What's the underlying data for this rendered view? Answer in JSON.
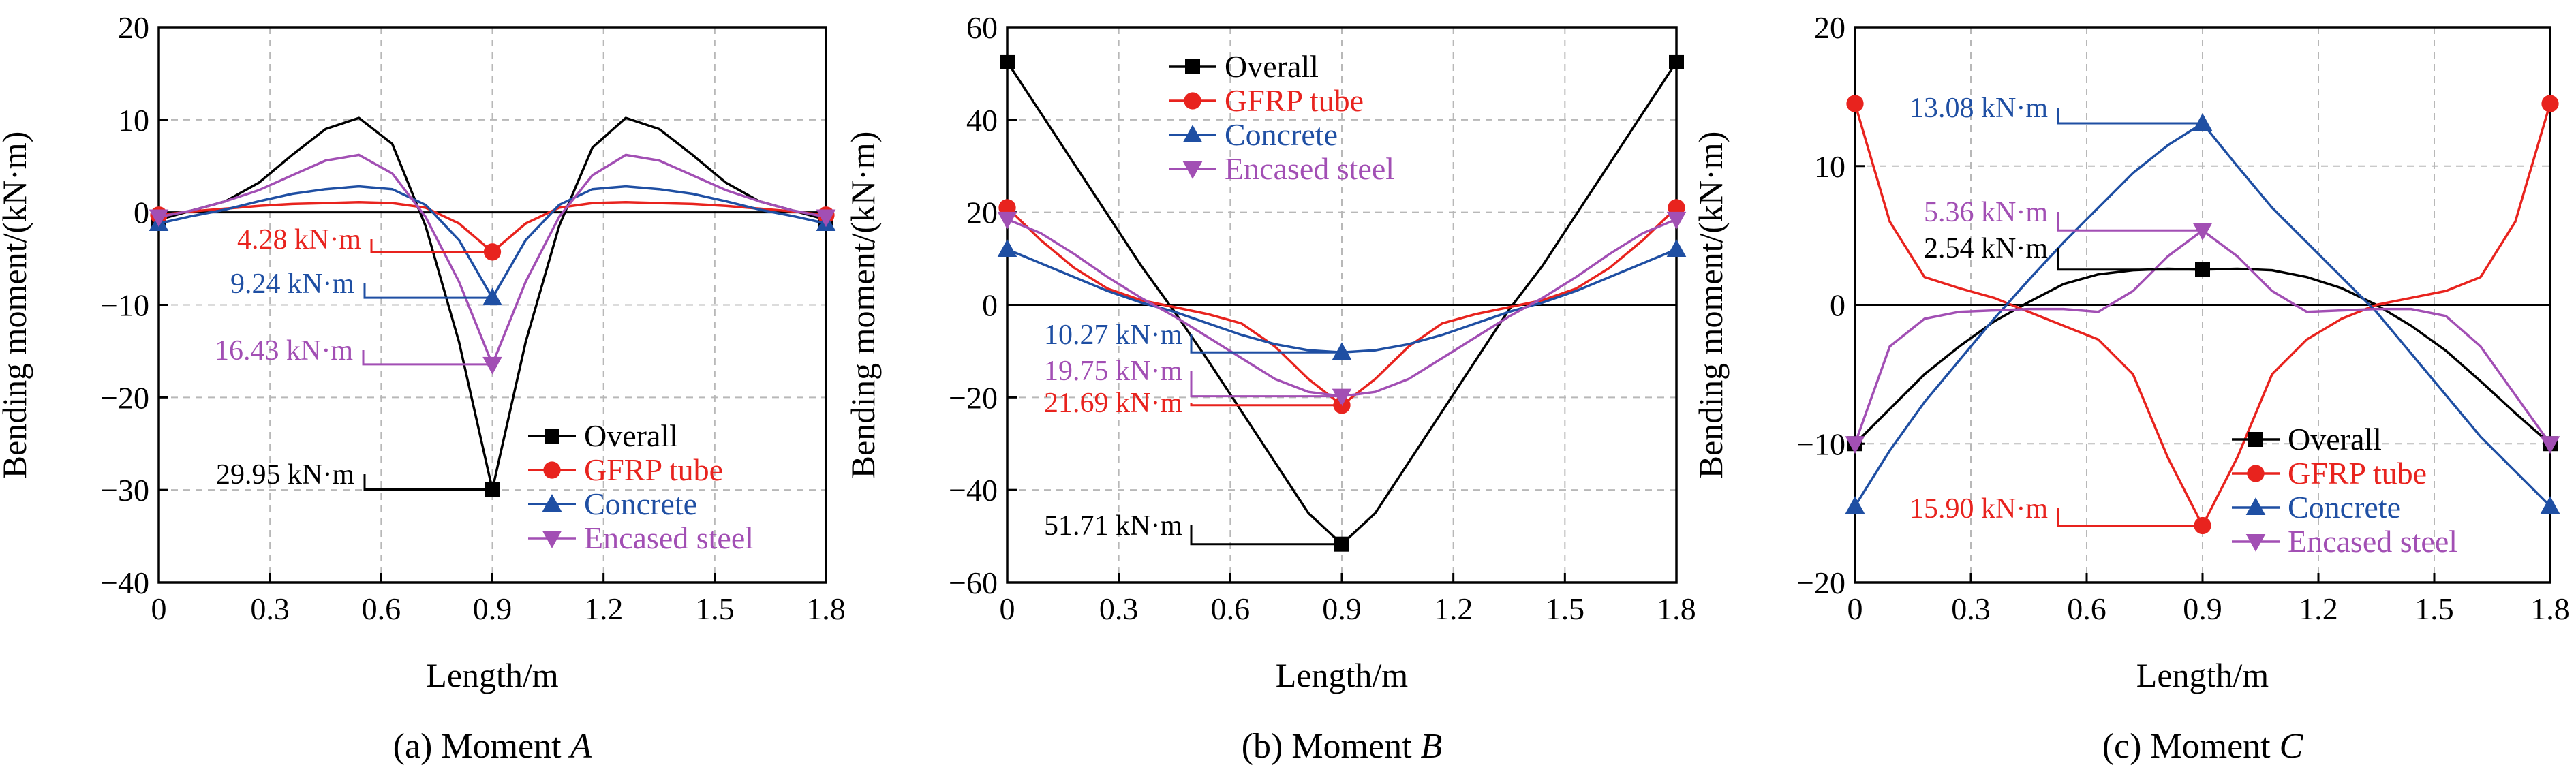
{
  "chart_data": [
    {
      "type": "line",
      "panel_label": "(a) Moment ",
      "panel_var": "A",
      "xlabel": "Length/m",
      "ylabel": "Bending moment/(kN·m)",
      "xlim": [
        0,
        1.8
      ],
      "ylim": [
        -40,
        20
      ],
      "xticks": [
        0,
        0.3,
        0.6,
        0.9,
        1.2,
        1.5,
        1.8
      ],
      "xtick_labels": [
        "0",
        "0.3",
        "0.6",
        "0.9",
        "1.2",
        "1.5",
        "1.8"
      ],
      "yticks": [
        -40,
        -30,
        -20,
        -10,
        0,
        10,
        20
      ],
      "ytick_labels": [
        "−40",
        "−30",
        "−20",
        "−10",
        "0",
        "10",
        "20"
      ],
      "grid": true,
      "legend_position": "lower-right",
      "series": [
        {
          "name": "Overall",
          "color": "#000000",
          "marker": "square",
          "x": [
            0,
            0.09,
            0.18,
            0.27,
            0.36,
            0.45,
            0.54,
            0.63,
            0.72,
            0.81,
            0.9,
            0.99,
            1.08,
            1.17,
            1.26,
            1.35,
            1.44,
            1.53,
            1.62,
            1.71,
            1.8
          ],
          "y": [
            -0.8,
            0.2,
            1.2,
            3.2,
            6.2,
            9.0,
            10.2,
            7.4,
            -1.5,
            -14.0,
            -29.95,
            -14.0,
            -1.5,
            7.0,
            10.2,
            9.0,
            6.2,
            3.2,
            1.2,
            0.2,
            -0.8
          ]
        },
        {
          "name": "GFRP tube",
          "color": "#e8231e",
          "marker": "circle",
          "x": [
            0,
            0.09,
            0.18,
            0.27,
            0.36,
            0.45,
            0.54,
            0.63,
            0.72,
            0.81,
            0.9,
            0.99,
            1.08,
            1.17,
            1.26,
            1.35,
            1.44,
            1.53,
            1.62,
            1.71,
            1.8
          ],
          "y": [
            -0.3,
            0.1,
            0.4,
            0.7,
            0.9,
            1.0,
            1.1,
            1.0,
            0.5,
            -1.2,
            -4.28,
            -1.2,
            0.5,
            1.0,
            1.1,
            1.0,
            0.9,
            0.7,
            0.4,
            0.1,
            -0.3
          ]
        },
        {
          "name": "Concrete",
          "color": "#1f4fa3",
          "marker": "triangle-up",
          "x": [
            0,
            0.09,
            0.18,
            0.27,
            0.36,
            0.45,
            0.54,
            0.63,
            0.72,
            0.81,
            0.9,
            0.99,
            1.08,
            1.17,
            1.26,
            1.35,
            1.44,
            1.53,
            1.62,
            1.71,
            1.8
          ],
          "y": [
            -1.2,
            -0.4,
            0.3,
            1.2,
            2.0,
            2.5,
            2.8,
            2.5,
            0.8,
            -3.0,
            -9.24,
            -3.0,
            0.8,
            2.5,
            2.8,
            2.5,
            2.0,
            1.2,
            0.3,
            -0.4,
            -1.2
          ]
        },
        {
          "name": "Encased steel",
          "color": "#a24fb4",
          "marker": "triangle-down",
          "x": [
            0,
            0.09,
            0.18,
            0.27,
            0.36,
            0.45,
            0.54,
            0.63,
            0.72,
            0.81,
            0.9,
            0.99,
            1.08,
            1.17,
            1.26,
            1.35,
            1.44,
            1.53,
            1.62,
            1.71,
            1.8
          ],
          "y": [
            -0.5,
            0.2,
            1.2,
            2.4,
            4.0,
            5.6,
            6.2,
            4.2,
            -0.5,
            -7.5,
            -16.43,
            -7.5,
            -0.5,
            4.0,
            6.2,
            5.6,
            4.0,
            2.4,
            1.2,
            0.2,
            -0.5
          ]
        }
      ],
      "annotations": [
        {
          "text": "4.28 kN·m",
          "color": "#e8231e",
          "x": 0.9,
          "y": -4.28
        },
        {
          "text": "9.24 kN·m",
          "color": "#1f4fa3",
          "x": 0.9,
          "y": -9.24
        },
        {
          "text": "16.43 kN·m",
          "color": "#a24fb4",
          "x": 0.9,
          "y": -16.43
        },
        {
          "text": "29.95 kN·m",
          "color": "#000000",
          "x": 0.9,
          "y": -29.95
        }
      ]
    },
    {
      "type": "line",
      "panel_label": "(b) Moment ",
      "panel_var": "B",
      "xlabel": "Length/m",
      "ylabel": "Bending moment/(kN·m)",
      "xlim": [
        0,
        1.8
      ],
      "ylim": [
        -60,
        60
      ],
      "xticks": [
        0,
        0.3,
        0.6,
        0.9,
        1.2,
        1.5,
        1.8
      ],
      "xtick_labels": [
        "0",
        "0.3",
        "0.6",
        "0.9",
        "1.2",
        "1.5",
        "1.8"
      ],
      "yticks": [
        -60,
        -40,
        -20,
        0,
        20,
        40,
        60
      ],
      "ytick_labels": [
        "−60",
        "−40",
        "−20",
        "0",
        "20",
        "40",
        "60"
      ],
      "grid": true,
      "legend_position": "upper-center",
      "series": [
        {
          "name": "Overall",
          "color": "#000000",
          "marker": "square",
          "x": [
            0,
            0.09,
            0.18,
            0.27,
            0.36,
            0.45,
            0.54,
            0.63,
            0.72,
            0.81,
            0.9,
            0.99,
            1.08,
            1.17,
            1.26,
            1.35,
            1.44,
            1.53,
            1.62,
            1.71,
            1.8
          ],
          "y": [
            52.5,
            41.5,
            30.5,
            19.5,
            8.5,
            -1.5,
            -12.0,
            -23.0,
            -34.0,
            -45.0,
            -51.71,
            -45.0,
            -34.0,
            -23.0,
            -12.0,
            -1.0,
            8.5,
            19.5,
            30.5,
            41.5,
            52.5
          ]
        },
        {
          "name": "GFRP tube",
          "color": "#e8231e",
          "marker": "circle",
          "x": [
            0,
            0.09,
            0.18,
            0.27,
            0.36,
            0.45,
            0.54,
            0.63,
            0.72,
            0.81,
            0.9,
            0.99,
            1.08,
            1.17,
            1.26,
            1.35,
            1.44,
            1.53,
            1.62,
            1.71,
            1.8
          ],
          "y": [
            21.0,
            14.0,
            8.0,
            3.5,
            1.0,
            -0.5,
            -2.0,
            -4.0,
            -9.0,
            -16.0,
            -21.69,
            -16.0,
            -9.0,
            -4.0,
            -2.0,
            -0.5,
            1.0,
            3.5,
            8.0,
            14.0,
            21.0
          ]
        },
        {
          "name": "Concrete",
          "color": "#1f4fa3",
          "marker": "triangle-up",
          "x": [
            0,
            0.09,
            0.18,
            0.27,
            0.36,
            0.45,
            0.54,
            0.63,
            0.72,
            0.81,
            0.9,
            0.99,
            1.08,
            1.17,
            1.26,
            1.35,
            1.44,
            1.53,
            1.62,
            1.71,
            1.8
          ],
          "y": [
            12.0,
            9.0,
            6.0,
            3.0,
            0.5,
            -1.5,
            -4.0,
            -6.5,
            -8.5,
            -9.8,
            -10.27,
            -9.8,
            -8.5,
            -6.5,
            -4.0,
            -1.5,
            0.5,
            3.0,
            6.0,
            9.0,
            12.0
          ]
        },
        {
          "name": "Encased steel",
          "color": "#a24fb4",
          "marker": "triangle-down",
          "x": [
            0,
            0.09,
            0.18,
            0.27,
            0.36,
            0.45,
            0.54,
            0.63,
            0.72,
            0.81,
            0.9,
            0.99,
            1.08,
            1.17,
            1.26,
            1.35,
            1.44,
            1.53,
            1.62,
            1.71,
            1.8
          ],
          "y": [
            18.5,
            15.5,
            11.0,
            6.0,
            1.5,
            -2.5,
            -7.0,
            -11.5,
            -16.0,
            -18.8,
            -19.75,
            -18.8,
            -16.0,
            -11.5,
            -7.0,
            -2.5,
            1.5,
            6.0,
            11.0,
            15.5,
            18.5
          ]
        }
      ],
      "annotations": [
        {
          "text": "10.27 kN·m",
          "color": "#1f4fa3",
          "x": 0.9,
          "y": -10.27
        },
        {
          "text": "19.75 kN·m",
          "color": "#a24fb4",
          "x": 0.9,
          "y": -19.75
        },
        {
          "text": "21.69 kN·m",
          "color": "#e8231e",
          "x": 0.9,
          "y": -21.69
        },
        {
          "text": "51.71 kN·m",
          "color": "#000000",
          "x": 0.9,
          "y": -51.71
        }
      ]
    },
    {
      "type": "line",
      "panel_label": "(c) Moment ",
      "panel_var": "C",
      "xlabel": "Length/m",
      "ylabel": "Bending moment/(kN·m)",
      "xlim": [
        0,
        1.8
      ],
      "ylim": [
        -20,
        20
      ],
      "xticks": [
        0,
        0.3,
        0.6,
        0.9,
        1.2,
        1.5,
        1.8
      ],
      "xtick_labels": [
        "0",
        "0.3",
        "0.6",
        "0.9",
        "1.2",
        "1.5",
        "1.8"
      ],
      "yticks": [
        -20,
        -10,
        0,
        10,
        20
      ],
      "ytick_labels": [
        "−20",
        "−10",
        "0",
        "10",
        "20"
      ],
      "grid": true,
      "legend_position": "lower-right",
      "series": [
        {
          "name": "Overall",
          "color": "#000000",
          "marker": "square",
          "x": [
            0,
            0.09,
            0.18,
            0.27,
            0.36,
            0.45,
            0.54,
            0.63,
            0.72,
            0.81,
            0.9,
            0.99,
            1.08,
            1.17,
            1.26,
            1.35,
            1.44,
            1.53,
            1.62,
            1.71,
            1.8
          ],
          "y": [
            -10.0,
            -7.5,
            -5.0,
            -3.0,
            -1.2,
            0.2,
            1.5,
            2.2,
            2.5,
            2.6,
            2.54,
            2.6,
            2.5,
            2.0,
            1.2,
            0.0,
            -1.5,
            -3.3,
            -5.5,
            -7.8,
            -10.0
          ]
        },
        {
          "name": "GFRP tube",
          "color": "#e8231e",
          "marker": "circle",
          "x": [
            0,
            0.09,
            0.18,
            0.27,
            0.36,
            0.45,
            0.54,
            0.63,
            0.72,
            0.81,
            0.9,
            0.99,
            1.08,
            1.17,
            1.26,
            1.35,
            1.44,
            1.53,
            1.62,
            1.71,
            1.8
          ],
          "y": [
            14.5,
            6.0,
            2.0,
            1.2,
            0.5,
            -0.5,
            -1.5,
            -2.5,
            -5.0,
            -11.0,
            -15.9,
            -11.0,
            -5.0,
            -2.5,
            -1.0,
            0.0,
            0.5,
            1.0,
            2.0,
            6.0,
            14.5
          ]
        },
        {
          "name": "Concrete",
          "color": "#1f4fa3",
          "marker": "triangle-up",
          "x": [
            0,
            0.09,
            0.18,
            0.27,
            0.36,
            0.45,
            0.54,
            0.63,
            0.72,
            0.81,
            0.9,
            0.99,
            1.08,
            1.17,
            1.26,
            1.35,
            1.44,
            1.53,
            1.62,
            1.71,
            1.8
          ],
          "y": [
            -14.5,
            -10.5,
            -7.0,
            -4.0,
            -1.0,
            1.8,
            4.5,
            7.0,
            9.5,
            11.5,
            13.08,
            10.0,
            7.0,
            4.5,
            2.0,
            -0.5,
            -3.5,
            -6.5,
            -9.5,
            -12.0,
            -14.5
          ]
        },
        {
          "name": "Encased steel",
          "color": "#a24fb4",
          "marker": "triangle-down",
          "x": [
            0,
            0.09,
            0.18,
            0.27,
            0.36,
            0.45,
            0.54,
            0.63,
            0.72,
            0.81,
            0.9,
            0.99,
            1.08,
            1.17,
            1.26,
            1.35,
            1.44,
            1.53,
            1.62,
            1.71,
            1.8
          ],
          "y": [
            -10.0,
            -3.0,
            -1.0,
            -0.5,
            -0.4,
            -0.3,
            -0.3,
            -0.5,
            1.0,
            3.5,
            5.36,
            3.5,
            1.0,
            -0.5,
            -0.4,
            -0.3,
            -0.3,
            -0.8,
            -3.0,
            -6.5,
            -10.0
          ]
        }
      ],
      "annotations": [
        {
          "text": "13.08 kN·m",
          "color": "#1f4fa3",
          "x": 0.9,
          "y": 13.08
        },
        {
          "text": "5.36 kN·m",
          "color": "#a24fb4",
          "x": 0.9,
          "y": 5.36
        },
        {
          "text": "2.54 kN·m",
          "color": "#000000",
          "x": 0.9,
          "y": 2.54
        },
        {
          "text": "15.90 kN·m",
          "color": "#e8231e",
          "x": 0.9,
          "y": -15.9
        }
      ]
    }
  ]
}
